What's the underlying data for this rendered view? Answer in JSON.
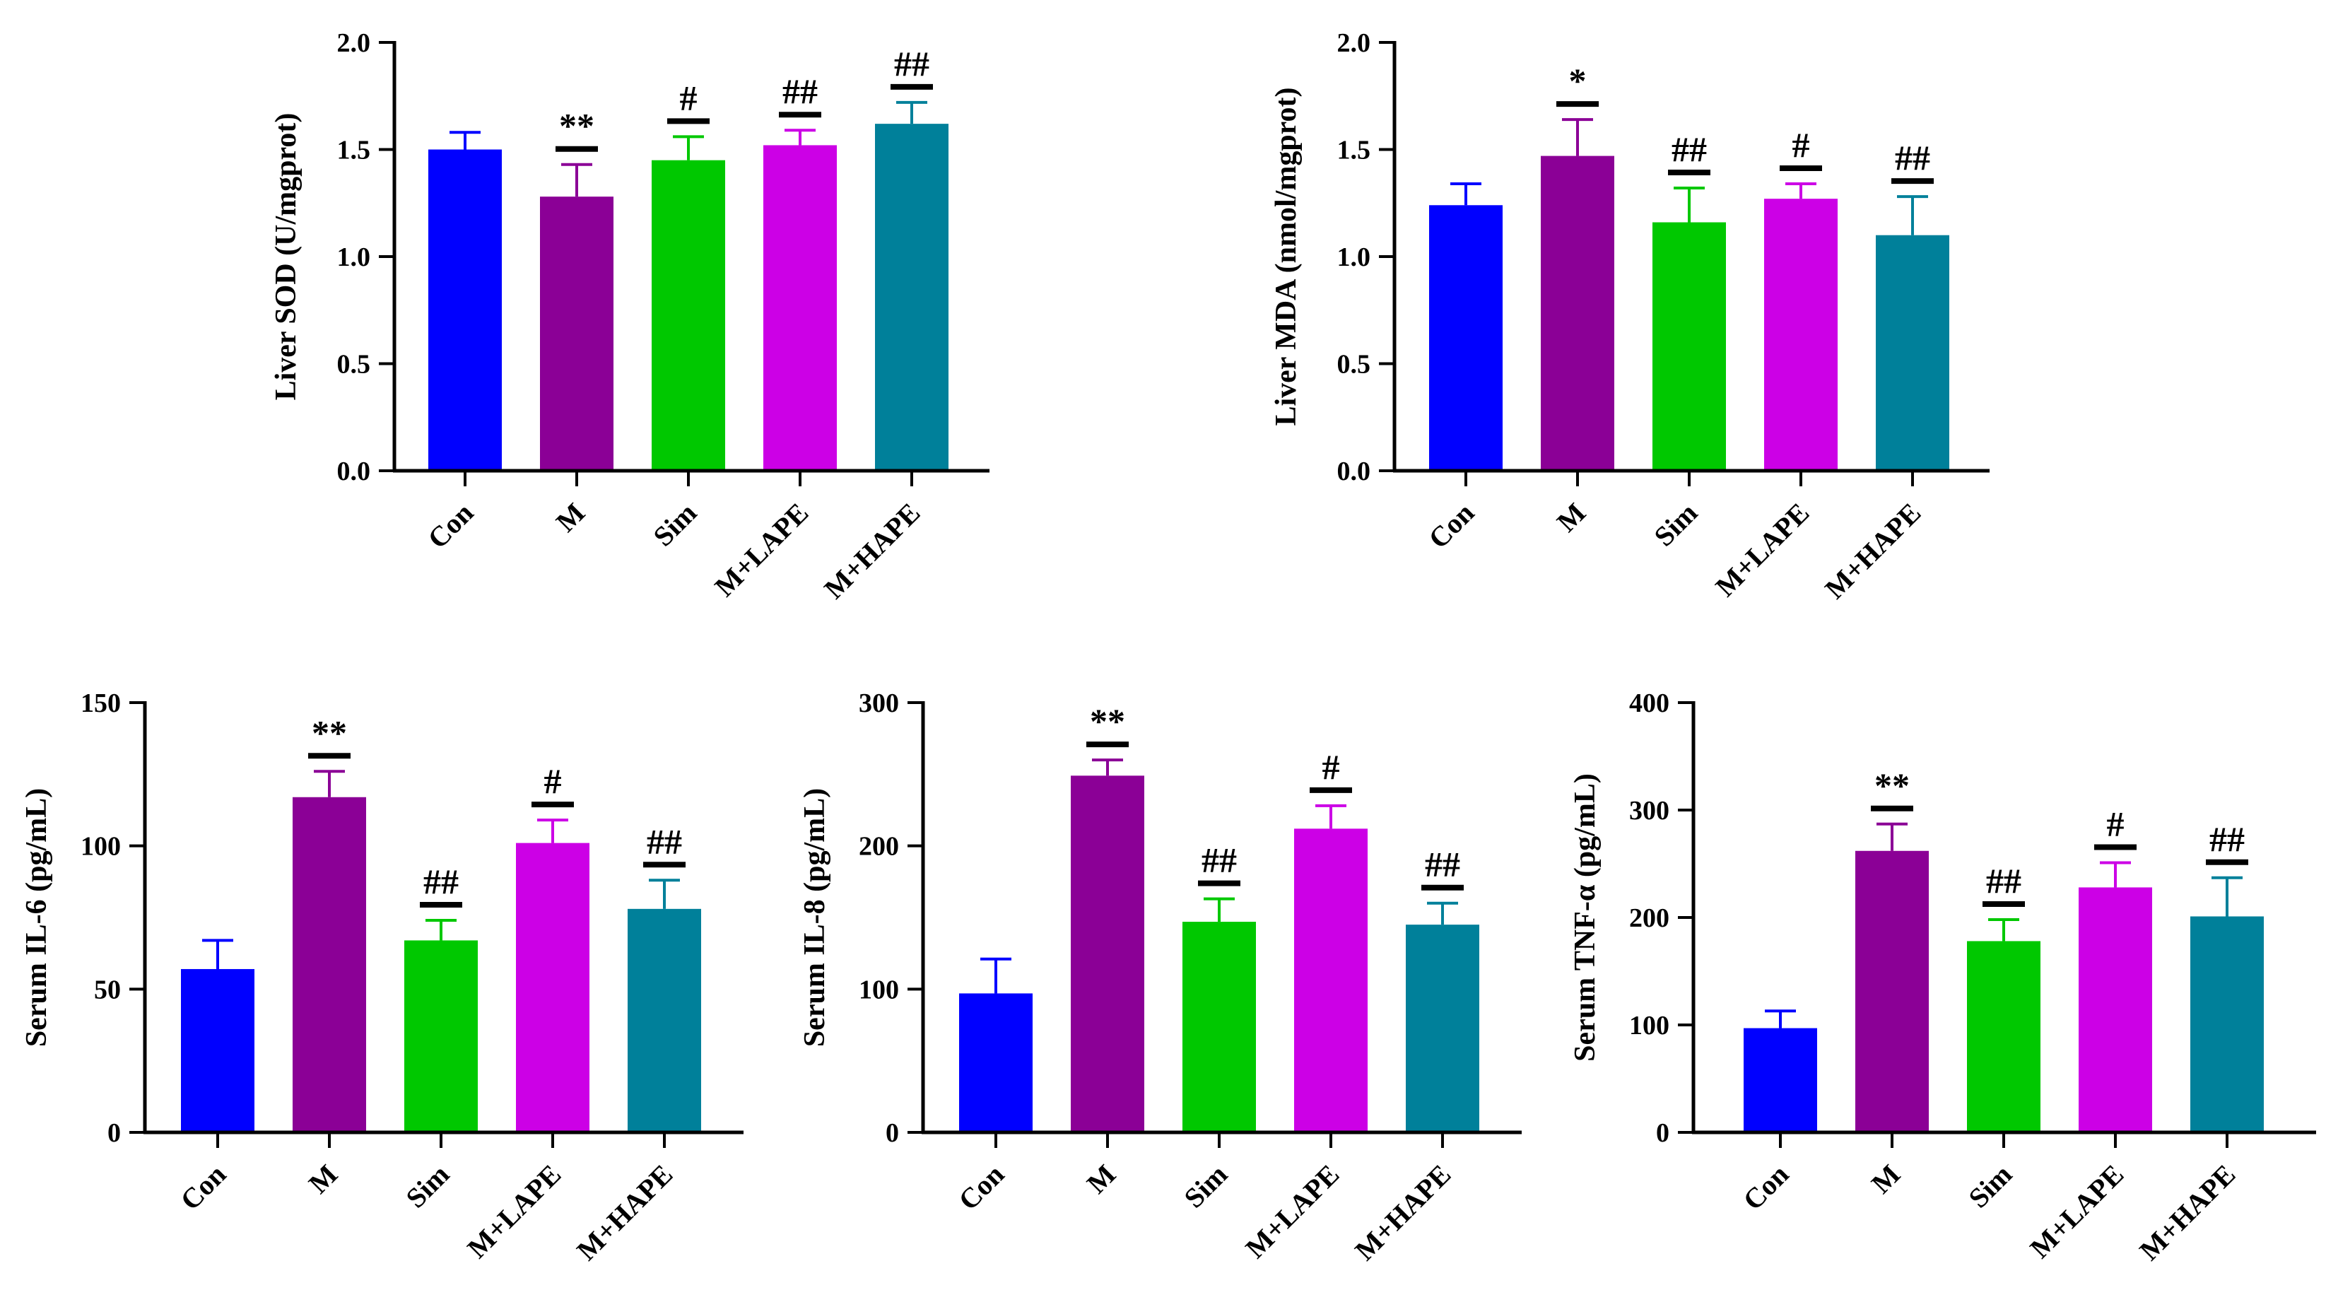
{
  "chart_data": [
    {
      "type": "bar",
      "ylabel": "Liver SOD (U/mgprot)",
      "ylim": [
        0,
        2.0
      ],
      "yticks": [
        "0.0",
        "0.5",
        "1.0",
        "1.5",
        "2.0"
      ],
      "categories": [
        "Con",
        "M",
        "Sim",
        "M+LAPE",
        "M+HAPE"
      ],
      "values": [
        1.5,
        1.28,
        1.45,
        1.52,
        1.62
      ],
      "errors": [
        0.08,
        0.15,
        0.11,
        0.07,
        0.1
      ],
      "significance": [
        "",
        "**",
        "#",
        "##",
        "##"
      ],
      "colors": [
        "#0000ff",
        "#8b0096",
        "#00c800",
        "#cc00e6",
        "#00809a"
      ]
    },
    {
      "type": "bar",
      "ylabel": "Liver MDA (nmol/mgprot)",
      "ylim": [
        0,
        2.0
      ],
      "yticks": [
        "0.0",
        "0.5",
        "1.0",
        "1.5",
        "2.0"
      ],
      "categories": [
        "Con",
        "M",
        "Sim",
        "M+LAPE",
        "M+HAPE"
      ],
      "values": [
        1.24,
        1.47,
        1.16,
        1.27,
        1.1
      ],
      "errors": [
        0.1,
        0.17,
        0.16,
        0.07,
        0.18
      ],
      "significance": [
        "",
        "*",
        "##",
        "#",
        "##"
      ],
      "colors": [
        "#0000ff",
        "#8b0096",
        "#00c800",
        "#cc00e6",
        "#00809a"
      ]
    },
    {
      "type": "bar",
      "ylabel": "Serum IL-6 (pg/mL)",
      "ylim": [
        0,
        150
      ],
      "yticks": [
        "0",
        "50",
        "100",
        "150"
      ],
      "categories": [
        "Con",
        "M",
        "Sim",
        "M+LAPE",
        "M+HAPE"
      ],
      "values": [
        57,
        117,
        67,
        101,
        78
      ],
      "errors": [
        10,
        9,
        7,
        8,
        10
      ],
      "significance": [
        "",
        "**",
        "##",
        "#",
        "##"
      ],
      "colors": [
        "#0000ff",
        "#8b0096",
        "#00c800",
        "#cc00e6",
        "#00809a"
      ]
    },
    {
      "type": "bar",
      "ylabel": "Serum IL-8 (pg/mL)",
      "ylim": [
        0,
        300
      ],
      "yticks": [
        "0",
        "100",
        "200",
        "300"
      ],
      "categories": [
        "Con",
        "M",
        "Sim",
        "M+LAPE",
        "M+HAPE"
      ],
      "values": [
        97,
        249,
        147,
        212,
        145
      ],
      "errors": [
        24,
        11,
        16,
        16,
        15
      ],
      "significance": [
        "",
        "**",
        "##",
        "#",
        "##"
      ],
      "colors": [
        "#0000ff",
        "#8b0096",
        "#00c800",
        "#cc00e6",
        "#00809a"
      ]
    },
    {
      "type": "bar",
      "ylabel": "Serum TNF-α (pg/mL)",
      "ylim": [
        0,
        400
      ],
      "yticks": [
        "0",
        "100",
        "200",
        "300",
        "400"
      ],
      "categories": [
        "Con",
        "M",
        "Sim",
        "M+LAPE",
        "M+HAPE"
      ],
      "values": [
        97,
        262,
        178,
        228,
        201
      ],
      "errors": [
        16,
        25,
        20,
        23,
        36
      ],
      "significance": [
        "",
        "**",
        "##",
        "#",
        "##"
      ],
      "colors": [
        "#0000ff",
        "#8b0096",
        "#00c800",
        "#cc00e6",
        "#00809a"
      ]
    }
  ]
}
